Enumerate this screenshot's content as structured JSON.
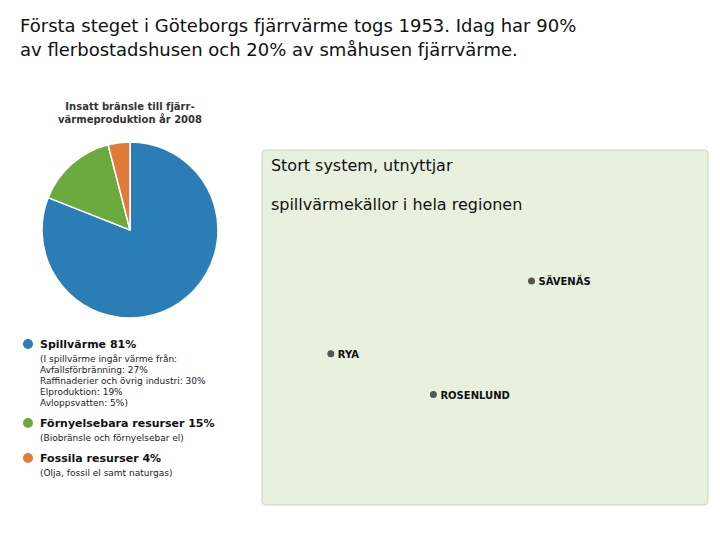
{
  "chart_data": {
    "type": "pie",
    "title": "Första steget i Göteborgs fjärrvärme togs 1953. Idag har 90%\nav flerbostadshusen och 20% av småhusen fjärrvärme.",
    "subtitle": "Insatt bränsle till fjärr-\nvärmeproduktion år 2008",
    "categories": [
      "Spillvärme 81%",
      "Förnyelsebara resurser 15%",
      "Fossila resurser 4%"
    ],
    "values": [
      81,
      15,
      4
    ],
    "colors": [
      "#2b7db5",
      "#6aaa3e",
      "#e07b39"
    ],
    "legend": "bottom",
    "annotations": [
      "(I spillvärme ingår värme från:\nAvfallsförbränning: 27%\nRaffinaderier och övrig industri: 30%\nElproduktion: 19%\nAvloppsvatten: 5%)",
      "(Biobränsle och förnyelsebar el)",
      "(Olja, fossil el samt naturgas)",
      "Stort system, utnyttjar",
      "spillvärmekällor i hela regionen",
      "RYA",
      "ROSENLUND",
      "SÄVENÄS"
    ]
  }
}
